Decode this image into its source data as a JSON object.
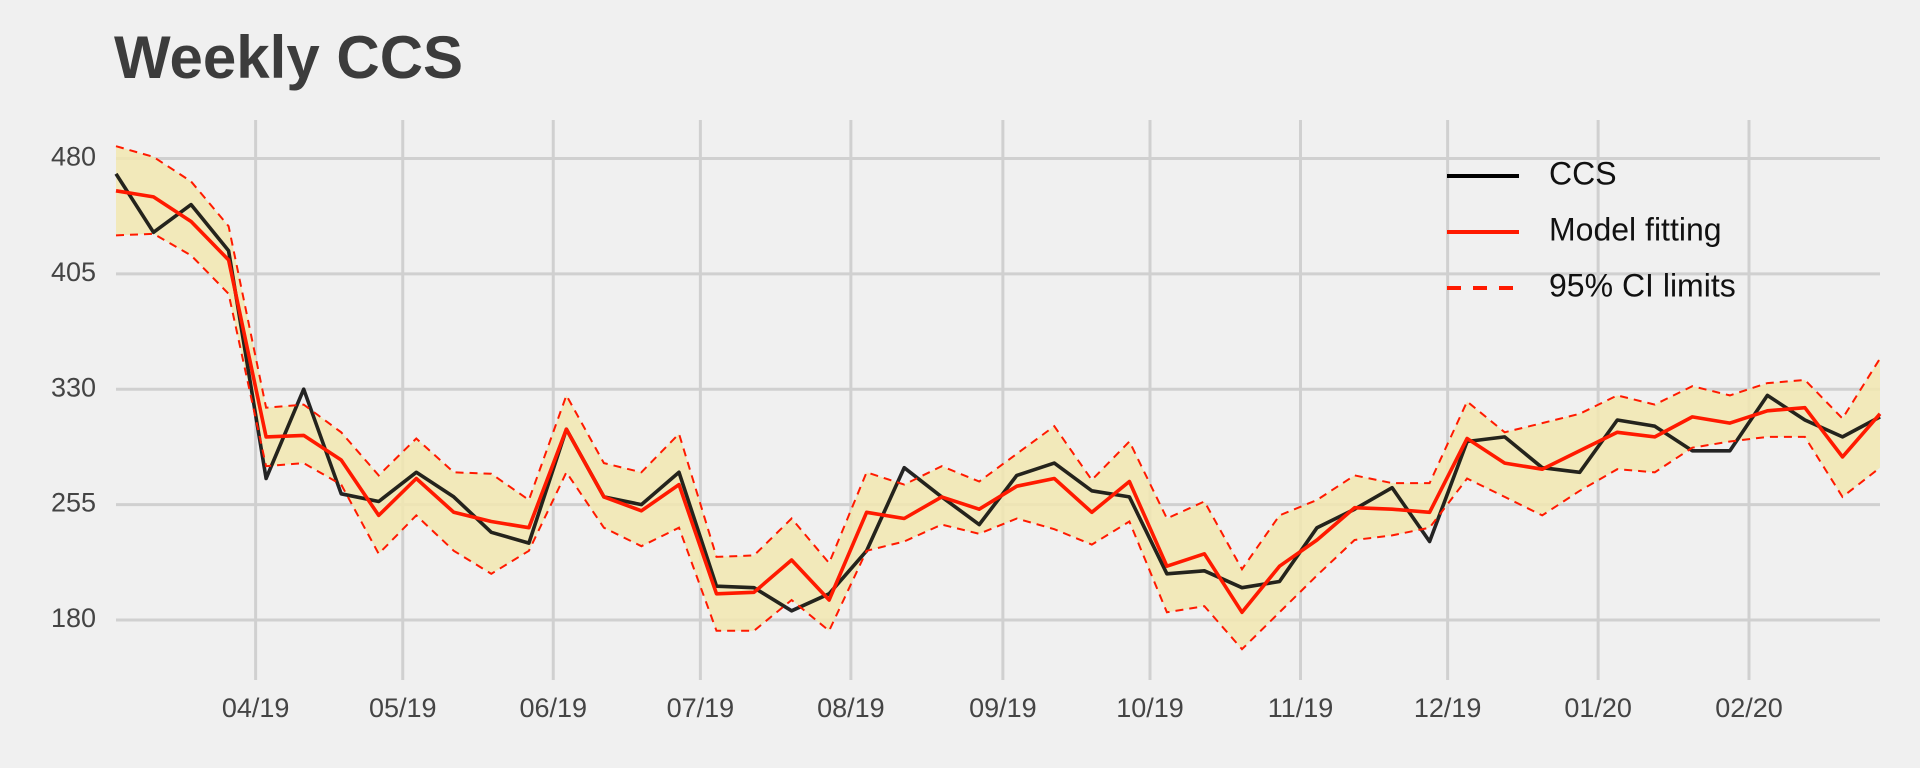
{
  "chart_data": {
    "type": "line",
    "title": "Weekly CCS",
    "xlim": [
      0,
      47
    ],
    "xticks": [
      {
        "value": 3.72,
        "label": "04/19"
      },
      {
        "value": 7.64,
        "label": "05/19"
      },
      {
        "value": 11.65,
        "label": "06/19"
      },
      {
        "value": 15.57,
        "label": "07/19"
      },
      {
        "value": 19.58,
        "label": "08/19"
      },
      {
        "value": 23.63,
        "label": "09/19"
      },
      {
        "value": 27.55,
        "label": "10/19"
      },
      {
        "value": 31.56,
        "label": "11/19"
      },
      {
        "value": 35.48,
        "label": "12/19"
      },
      {
        "value": 39.49,
        "label": "01/20"
      },
      {
        "value": 43.51,
        "label": "02/20"
      }
    ],
    "ylim": [
      141,
      505
    ],
    "yticks": [
      180,
      255,
      330,
      405,
      480
    ],
    "grid": true,
    "legend": "upper right",
    "band_color": "#f2e8b0",
    "series": [
      {
        "name": "CCS",
        "color": "#000000",
        "style": "solid",
        "values": [
          470,
          432,
          450,
          420,
          272,
          330,
          262,
          257,
          276,
          260,
          237,
          230,
          304,
          260,
          255,
          276,
          202,
          201,
          186,
          197,
          225,
          279,
          260,
          242,
          274,
          282,
          264,
          260,
          210,
          212,
          201,
          205,
          240,
          252,
          266,
          231,
          296,
          299,
          279,
          276,
          310,
          306,
          290,
          290,
          326,
          310,
          299,
          312
        ]
      },
      {
        "name": "Model fitting",
        "color": "#ff1a00",
        "style": "solid",
        "values": [
          459,
          455,
          439,
          414,
          299,
          300,
          284,
          248,
          272,
          250,
          244,
          240,
          304,
          260,
          251,
          268,
          197,
          198,
          219,
          193,
          250,
          246,
          260,
          252,
          267,
          272,
          250,
          270,
          215,
          223,
          185,
          215,
          232,
          253,
          252,
          250,
          298,
          282,
          278,
          290,
          302,
          299,
          312,
          308,
          316,
          318,
          286,
          314
        ]
      },
      {
        "name": "95% CI limits",
        "color": "#ff1a00",
        "style": "dashed",
        "upper": [
          488,
          481,
          465,
          436,
          318,
          320,
          302,
          274,
          298,
          276,
          275,
          258,
          326,
          282,
          276,
          301,
          221,
          222,
          246,
          217,
          276,
          268,
          280,
          270,
          288,
          306,
          271,
          296,
          246,
          257,
          213,
          248,
          258,
          274,
          269,
          269,
          322,
          302,
          308,
          314,
          326,
          320,
          332,
          326,
          334,
          336,
          311,
          350
        ],
        "lower": [
          430,
          431,
          417,
          392,
          280,
          282,
          268,
          223,
          248,
          225,
          210,
          225,
          276,
          240,
          228,
          240,
          173,
          173,
          193,
          173,
          225,
          231,
          242,
          236,
          246,
          239,
          229,
          244,
          185,
          189,
          161,
          185,
          209,
          232,
          235,
          240,
          272,
          260,
          248,
          264,
          278,
          276,
          292,
          296,
          299,
          299,
          260,
          279
        ]
      }
    ]
  }
}
